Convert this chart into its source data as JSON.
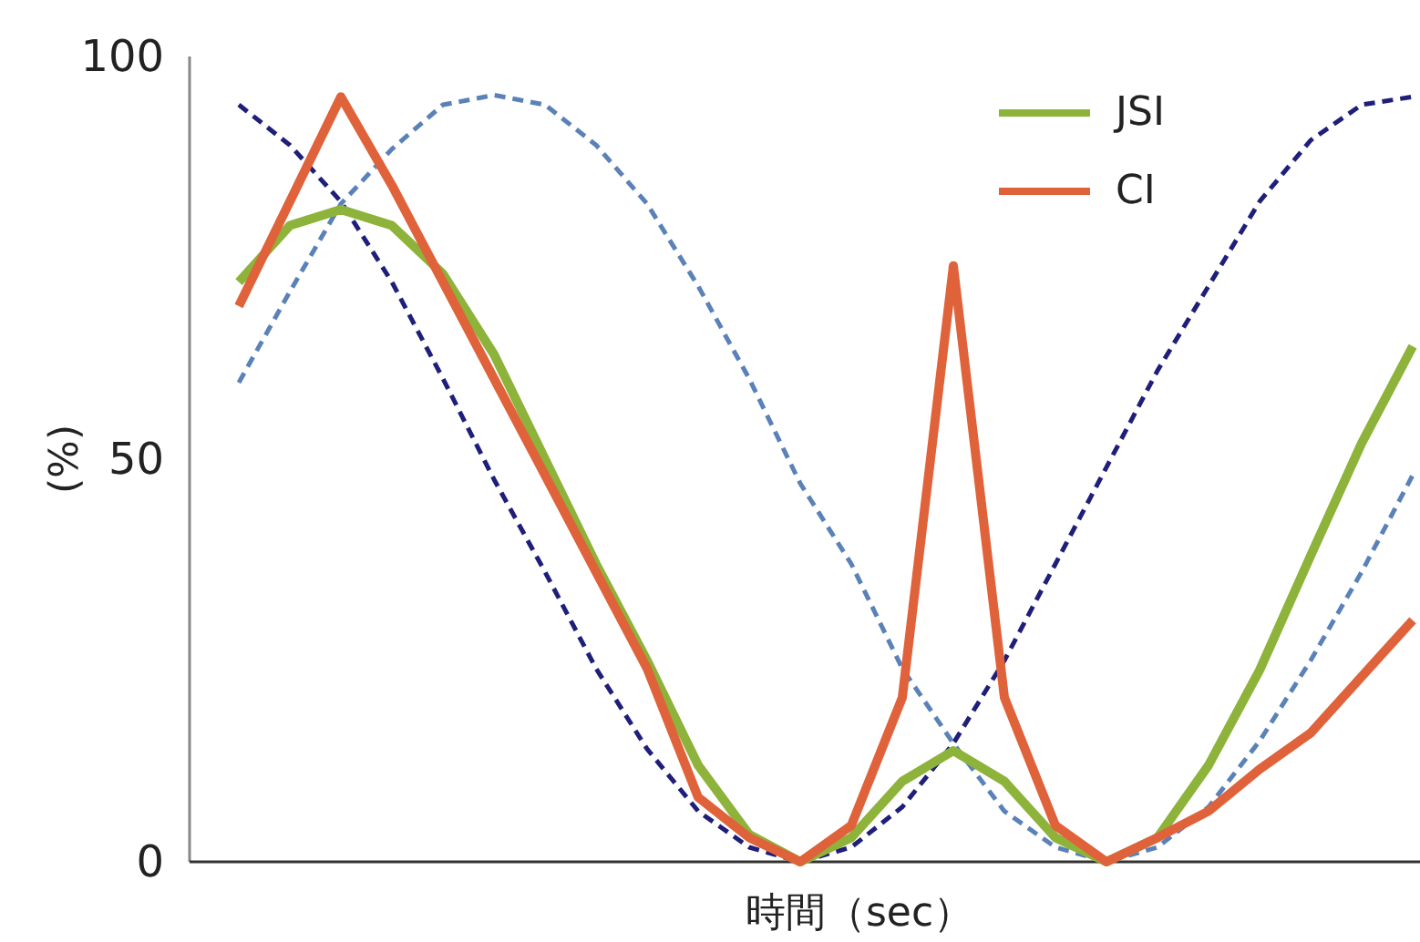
{
  "chart_data": {
    "type": "line",
    "xlabel": "時間（sec）",
    "ylabel": "(%)",
    "categories": [
      null,
      null,
      null,
      null,
      null,
      null,
      null,
      null,
      null,
      null,
      null,
      null,
      null,
      null,
      null,
      null,
      null,
      null,
      null,
      null,
      null,
      null,
      null,
      null
    ],
    "ylim": [
      0,
      100
    ],
    "yticks": [
      0,
      50,
      100
    ],
    "grid": false,
    "legend": "top right",
    "line_style": "solid",
    "series": [
      {
        "color": "#1f1f7a",
        "line_style": "dashed",
        "values": [
          94,
          89,
          82,
          72,
          60,
          47.5,
          36,
          24,
          14,
          6.3,
          1.8,
          0,
          1.8,
          6.8,
          14.7,
          25,
          37,
          49,
          61,
          71.5,
          82,
          89.6,
          94,
          95
        ]
      },
      {
        "color": "#5a82b8",
        "line_style": "dashed",
        "values": [
          59.5,
          70.8,
          81.7,
          88.5,
          94,
          95.2,
          94,
          89,
          81.7,
          71.5,
          60,
          47,
          37,
          24,
          14.7,
          6.3,
          1.8,
          0,
          1.8,
          6.8,
          15,
          25,
          36,
          48
        ]
      },
      {
        "name": "JSI",
        "color": "#8db33a",
        "values": [
          72,
          79,
          81,
          79,
          73,
          63,
          50,
          37,
          25,
          12,
          3.4,
          0,
          3,
          10,
          13.8,
          10,
          3,
          0,
          3,
          12,
          23.8,
          38,
          52,
          64
        ]
      },
      {
        "name": "CI",
        "color": "#e0623a",
        "values": [
          69,
          82,
          95,
          84,
          72,
          60,
          48,
          36,
          24,
          8,
          3,
          0,
          4.5,
          20.4,
          74,
          20.4,
          4.5,
          0,
          3,
          6.3,
          11.5,
          16,
          23,
          30
        ]
      }
    ]
  }
}
